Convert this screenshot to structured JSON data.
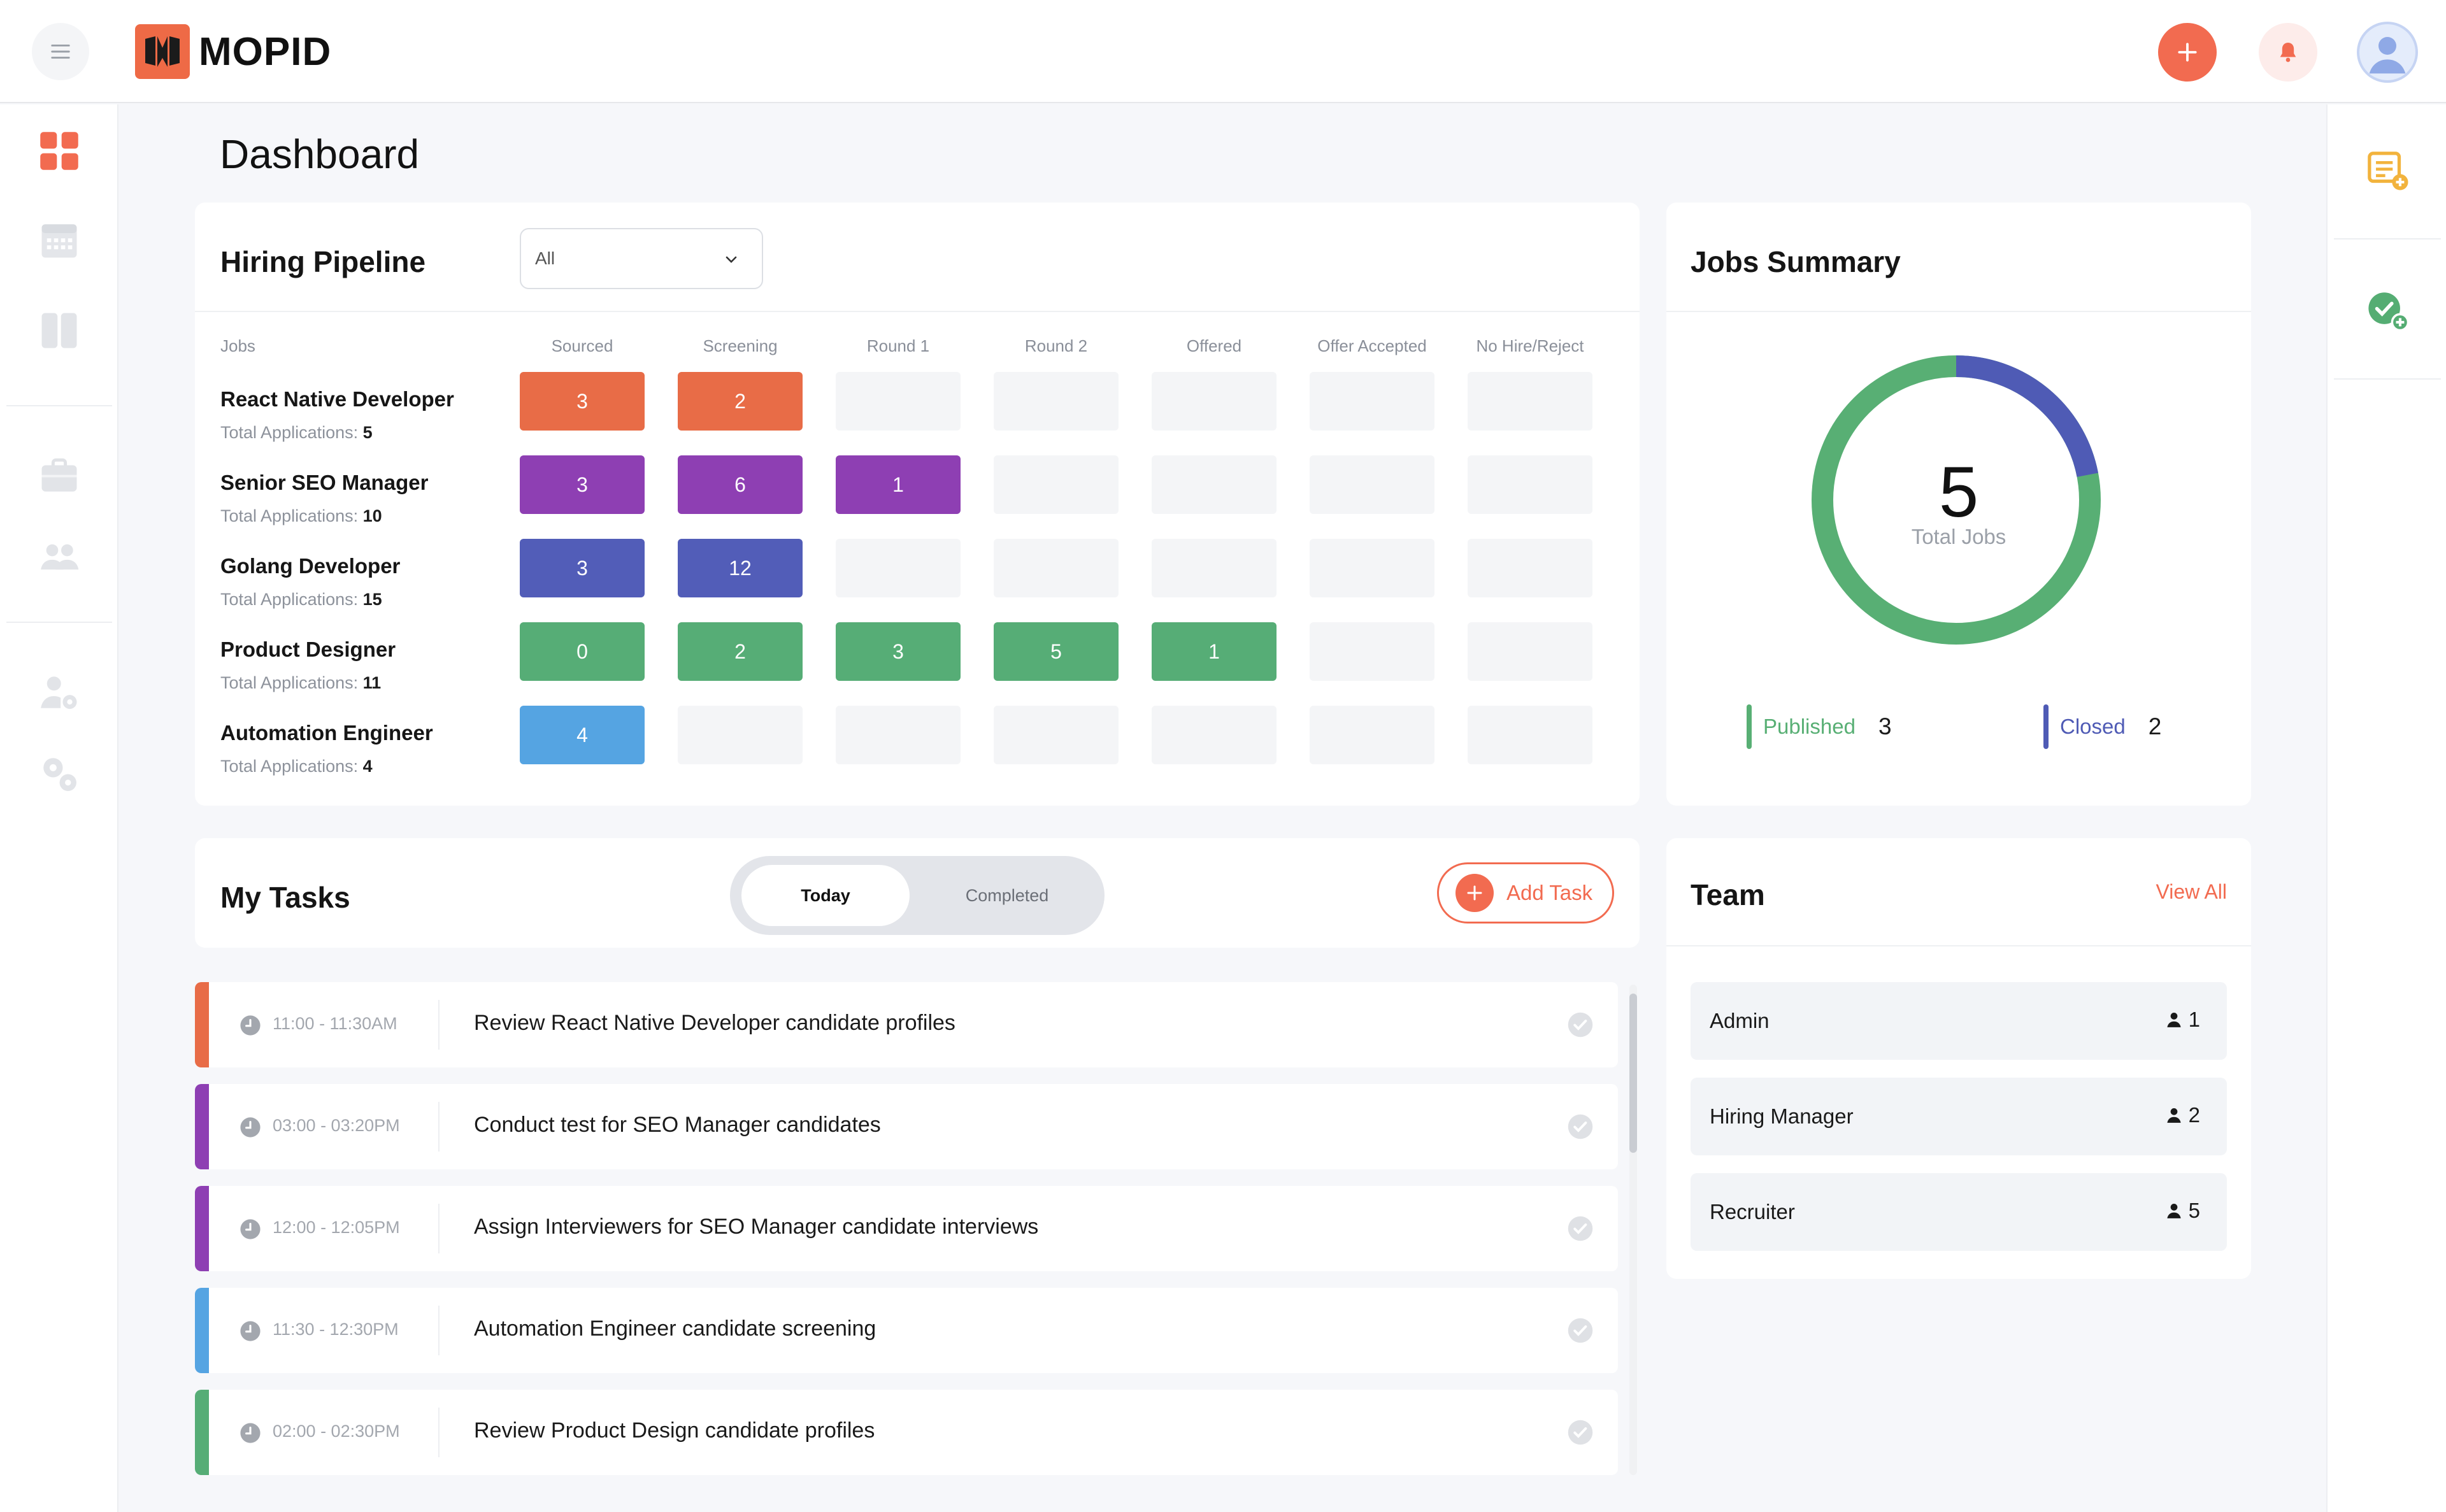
{
  "app": {
    "name": "MOPID"
  },
  "page": {
    "title": "Dashboard"
  },
  "pipeline": {
    "title": "Hiring Pipeline",
    "filter": "All",
    "jobs_header": "Jobs",
    "total_label": "Total Applications:",
    "stages": [
      "Sourced",
      "Screening",
      "Round 1",
      "Round 2",
      "Offered",
      "Offer Accepted",
      "No Hire/Reject"
    ],
    "jobs": [
      {
        "name": "React Native Developer",
        "total": "5",
        "color": "#e86c47",
        "values": [
          "3",
          "2",
          "",
          "",
          "",
          "",
          ""
        ]
      },
      {
        "name": "Senior SEO Manager",
        "total": "10",
        "color": "#8e3fb3",
        "values": [
          "3",
          "6",
          "1",
          "",
          "",
          "",
          ""
        ]
      },
      {
        "name": "Golang Developer",
        "total": "15",
        "color": "#525db8",
        "values": [
          "3",
          "12",
          "",
          "",
          "",
          "",
          ""
        ]
      },
      {
        "name": "Product Designer",
        "total": "11",
        "color": "#56ad76",
        "values": [
          "0",
          "2",
          "3",
          "5",
          "1",
          "",
          ""
        ]
      },
      {
        "name": "Automation Engineer",
        "total": "4",
        "color": "#55a4e2",
        "values": [
          "4",
          "",
          "",
          "",
          "",
          "",
          ""
        ]
      }
    ]
  },
  "jobs_summary": {
    "title": "Jobs Summary",
    "total": "5",
    "total_label": "Total Jobs",
    "published_label": "Published",
    "published": 3,
    "closed_label": "Closed",
    "closed": 2,
    "published_color": "#58af74",
    "closed_color": "#4f5bb5"
  },
  "tasks": {
    "title": "My Tasks",
    "tab_today": "Today",
    "tab_completed": "Completed",
    "add_label": "Add Task",
    "items": [
      {
        "time": "11:00 - 11:30AM",
        "text": "Review React Native Developer candidate profiles",
        "color": "#e86c47"
      },
      {
        "time": "03:00 - 03:20PM",
        "text": "Conduct test for SEO Manager candidates",
        "color": "#8e3fb3"
      },
      {
        "time": "12:00 - 12:05PM",
        "text": "Assign Interviewers for SEO Manager candidate interviews",
        "color": "#8e3fb3"
      },
      {
        "time": "11:30 - 12:30PM",
        "text": "Automation Engineer candidate screening",
        "color": "#55a4e2"
      },
      {
        "time": "02:00 - 02:30PM",
        "text": "Review Product Design candidate profiles",
        "color": "#56ad76"
      }
    ]
  },
  "team": {
    "title": "Team",
    "view_all": "View All",
    "roles": [
      {
        "name": "Admin",
        "count": "1"
      },
      {
        "name": "Hiring Manager",
        "count": "2"
      },
      {
        "name": "Recruiter",
        "count": "5"
      }
    ]
  },
  "icons": {
    "accent": "#f26b50",
    "sidebar": [
      "dashboard-icon",
      "calendar-icon",
      "board-icon",
      "briefcase-icon",
      "users-icon",
      "user-settings-icon",
      "settings-icon"
    ],
    "rightbar": [
      "add-note-icon",
      "add-check-icon"
    ]
  }
}
